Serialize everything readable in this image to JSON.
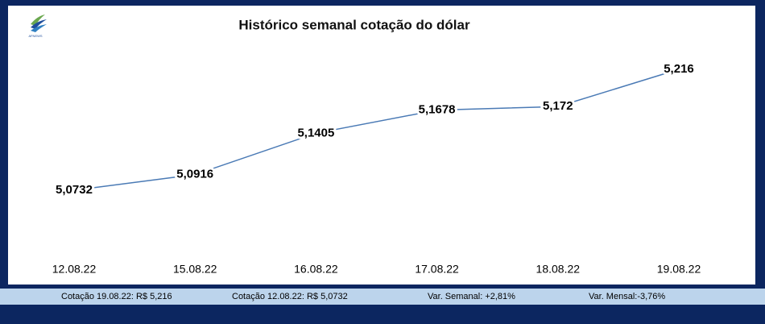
{
  "logo": "AFNEWS",
  "chart_data": {
    "type": "line",
    "title": "Histórico semanal cotação do dólar",
    "categories": [
      "12.08.22",
      "15.08.22",
      "16.08.22",
      "17.08.22",
      "18.08.22",
      "19.08.22"
    ],
    "values": [
      5.0732,
      5.0916,
      5.1405,
      5.1678,
      5.172,
      5.216
    ],
    "value_labels": [
      "5,0732",
      "5,0916",
      "5,1405",
      "5,1678",
      "5,172",
      "5,216"
    ],
    "color": "#4a7ab5"
  },
  "footer": [
    "Cotação 19.08.22: R$ 5,216",
    "Cotação 12.08.22: R$ 5,0732",
    "Var. Semanal: +2,81%",
    "Var. Mensal:-3,76%"
  ]
}
